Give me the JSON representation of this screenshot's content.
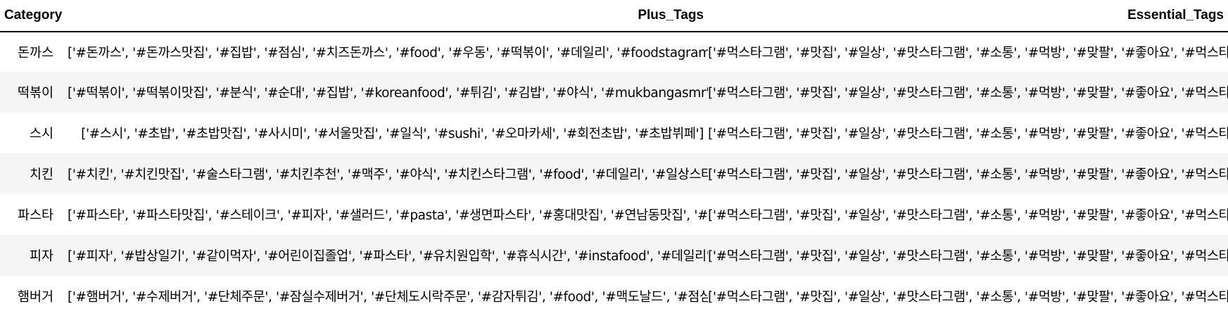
{
  "table": {
    "columns": [
      "Category",
      "Plus_Tags",
      "Essential_Tags"
    ],
    "rows": [
      {
        "category": "돈까스",
        "plus_tags": "['#돈까스', '#돈까스맛집', '#집밥', '#점심', '#치즈돈까스', '#food', '#우동', '#떡볶이', '#데일리', '#foodstagram']",
        "essential_tags": "['#먹스타그램', '#맛집', '#일상', '#맛스타그램', '#소통', '#먹방', '#맞팔', '#좋아요', '#먹스타', '#먹팔']"
      },
      {
        "category": "떡볶이",
        "plus_tags": "['#떡볶이', '#떡볶이맛집', '#분식', '#순대', '#집밥', '#koreanfood', '#튀김', '#김밥', '#야식', '#mukbangasmr']",
        "essential_tags": "['#먹스타그램', '#맛집', '#일상', '#맛스타그램', '#소통', '#먹방', '#맞팔', '#좋아요', '#먹스타', '#먹팔']"
      },
      {
        "category": "스시",
        "plus_tags": "['#스시', '#초밥', '#초밥맛집', '#사시미', '#서울맛집', '#일식', '#sushi', '#오마카세', '#회전초밥', '#초밥뷔페']",
        "essential_tags": "['#먹스타그램', '#맛집', '#일상', '#맛스타그램', '#소통', '#먹방', '#맞팔', '#좋아요', '#먹스타', '#먹팔']"
      },
      {
        "category": "치킨",
        "plus_tags": "['#치킨', '#치킨맛집', '#술스타그램', '#치킨추천', '#맥주', '#야식', '#치킨스타그램', '#food', '#데일리', '#일상스타그램']",
        "essential_tags": "['#먹스타그램', '#맛집', '#일상', '#맛스타그램', '#소통', '#먹방', '#맞팔', '#좋아요', '#먹스타', '#먹팔']"
      },
      {
        "category": "파스타",
        "plus_tags": "['#파스타', '#파스타맛집', '#스테이크', '#피자', '#샐러드', '#pasta', '#생면파스타', '#홍대맛집', '#연남동맛집', '#연남맛집']",
        "essential_tags": "['#먹스타그램', '#맛집', '#일상', '#맛스타그램', '#소통', '#먹방', '#맞팔', '#좋아요', '#먹스타', '#먹팔']"
      },
      {
        "category": "피자",
        "plus_tags": "['#피자', '#밥상일기', '#같이먹자', '#어린이집졸업', '#파스타', '#유치원입학', '#휴식시간', '#instafood', '#데일리', '#스파게티']",
        "essential_tags": "['#먹스타그램', '#맛집', '#일상', '#맛스타그램', '#소통', '#먹방', '#맞팔', '#좋아요', '#먹스타', '#먹팔']"
      },
      {
        "category": "햄버거",
        "plus_tags": "['#햄버거', '#수제버거', '#단체주문', '#잠실수제버거', '#단체도시락주문', '#감자튀김', '#food', '#맥도날드', '#점심', '#버거킹']",
        "essential_tags": "['#먹스타그램', '#맛집', '#일상', '#맛스타그램', '#소통', '#먹방', '#맞팔', '#좋아요', '#먹스타', '#먹팔']"
      }
    ]
  }
}
